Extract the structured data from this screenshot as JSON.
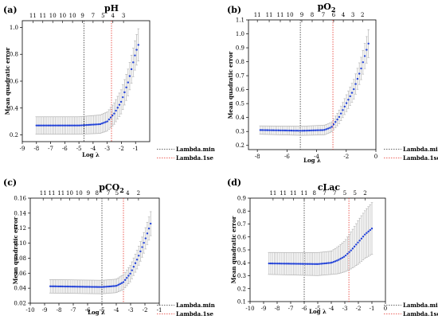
{
  "legend": {
    "min_label": "Lambda.min",
    "se_label": "Lambda.1se",
    "min_color": "#333333",
    "se_color": "#e8342b"
  },
  "colors": {
    "points": "#1f3fd6",
    "errorbars": "#b5b5b5"
  },
  "chart_data": [
    {
      "type": "scatter",
      "panel": "(a)",
      "title": "pH",
      "title_sub": "",
      "title_suffix": "",
      "xlabel": "Log λ",
      "ylabel": "Mean quadratic error",
      "xlim": [
        -9,
        0
      ],
      "ylim": [
        0.15,
        1.05
      ],
      "xticks": [
        -9,
        -8,
        -7,
        -6,
        -5,
        -4,
        -3,
        -2,
        -1
      ],
      "yticks": [
        0.2,
        0.4,
        0.6,
        0.8,
        1.0
      ],
      "ytick_labels": [
        "0.2",
        "0.4",
        "0.6",
        "0.8",
        "1.0"
      ],
      "top_axis": [
        {
          "x": -8.25,
          "label": "11"
        },
        {
          "x": -7.55,
          "label": "11"
        },
        {
          "x": -6.85,
          "label": "10"
        },
        {
          "x": -6.15,
          "label": "10"
        },
        {
          "x": -5.45,
          "label": "10"
        },
        {
          "x": -4.75,
          "label": "9"
        },
        {
          "x": -4.0,
          "label": "7"
        },
        {
          "x": -3.3,
          "label": "5"
        },
        {
          "x": -2.6,
          "label": "4"
        },
        {
          "x": -1.85,
          "label": "3"
        }
      ],
      "lambda_min": -4.65,
      "lambda_1se": -2.7,
      "x_start": -8.0,
      "x_end": -0.8,
      "n_points": 60,
      "curve": [
        [
          -8.0,
          0.27
        ],
        [
          -5.0,
          0.27
        ],
        [
          -3.5,
          0.28
        ],
        [
          -3.0,
          0.3
        ],
        [
          -2.5,
          0.36
        ],
        [
          -2.0,
          0.45
        ],
        [
          -1.5,
          0.6
        ],
        [
          -1.0,
          0.81
        ],
        [
          -0.8,
          0.87
        ]
      ],
      "err": [
        [
          -8.0,
          0.065
        ],
        [
          -5.0,
          0.065
        ],
        [
          -3.0,
          0.07
        ],
        [
          -2.0,
          0.09
        ],
        [
          -1.0,
          0.11
        ],
        [
          -0.8,
          0.12
        ]
      ]
    },
    {
      "type": "scatter",
      "panel": "(b)",
      "title": "pO",
      "title_sub": "2",
      "title_suffix": "",
      "xlabel": "Log λ",
      "ylabel": "Mean quadratic error",
      "xlim": [
        -8.6,
        0
      ],
      "ylim": [
        0.17,
        1.1
      ],
      "xticks": [
        -8,
        -6,
        -4,
        -2,
        0
      ],
      "yticks": [
        0.2,
        0.3,
        0.4,
        0.5,
        0.6,
        0.7,
        0.8,
        0.9,
        1.0,
        1.1
      ],
      "ytick_labels": [
        "0.2",
        "0.3",
        "0.4",
        "0.5",
        "0.6",
        "0.7",
        "0.8",
        "0.9",
        "1.0",
        "1.1"
      ],
      "top_axis": [
        {
          "x": -8.0,
          "label": "11"
        },
        {
          "x": -7.2,
          "label": "11"
        },
        {
          "x": -6.45,
          "label": "11"
        },
        {
          "x": -5.8,
          "label": "10"
        },
        {
          "x": -5.0,
          "label": "9"
        },
        {
          "x": -4.3,
          "label": "8"
        },
        {
          "x": -3.55,
          "label": "7"
        },
        {
          "x": -2.85,
          "label": "6"
        },
        {
          "x": -2.2,
          "label": "4"
        },
        {
          "x": -1.55,
          "label": "3"
        },
        {
          "x": -0.9,
          "label": "2"
        }
      ],
      "lambda_min": -5.1,
      "lambda_1se": -2.9,
      "x_start": -7.8,
      "x_end": -0.5,
      "n_points": 60,
      "curve": [
        [
          -7.8,
          0.31
        ],
        [
          -5.0,
          0.305
        ],
        [
          -3.5,
          0.31
        ],
        [
          -3.0,
          0.33
        ],
        [
          -2.5,
          0.4
        ],
        [
          -2.0,
          0.5
        ],
        [
          -1.5,
          0.6
        ],
        [
          -1.0,
          0.75
        ],
        [
          -0.5,
          0.93
        ]
      ],
      "err": [
        [
          -7.8,
          0.03
        ],
        [
          -3.0,
          0.035
        ],
        [
          -2.0,
          0.06
        ],
        [
          -1.0,
          0.08
        ],
        [
          -0.5,
          0.1
        ]
      ]
    },
    {
      "type": "scatter",
      "panel": "(c)",
      "title": "pCO",
      "title_sub": "2",
      "title_suffix": "",
      "xlabel": "Log λ",
      "ylabel": "Mean quadratic error",
      "xlim": [
        -10,
        -1
      ],
      "ylim": [
        0.02,
        0.16
      ],
      "xticks": [
        -10,
        -9,
        -8,
        -7,
        -6,
        -5,
        -4,
        -3,
        -2,
        -1
      ],
      "yticks": [
        0.02,
        0.04,
        0.06,
        0.08,
        0.1,
        0.12,
        0.14,
        0.16
      ],
      "ytick_labels": [
        "0.02",
        "0.04",
        "0.06",
        "0.08",
        "0.10",
        "0.12",
        "0.14",
        "0.16"
      ],
      "top_axis": [
        {
          "x": -9.1,
          "label": "11"
        },
        {
          "x": -8.5,
          "label": "11"
        },
        {
          "x": -7.85,
          "label": "11"
        },
        {
          "x": -7.25,
          "label": "10"
        },
        {
          "x": -6.6,
          "label": "10"
        },
        {
          "x": -5.95,
          "label": "9"
        },
        {
          "x": -5.35,
          "label": "8"
        },
        {
          "x": -4.55,
          "label": "7"
        },
        {
          "x": -3.95,
          "label": "5"
        },
        {
          "x": -3.2,
          "label": "4"
        },
        {
          "x": -2.45,
          "label": "2"
        }
      ],
      "lambda_min": -5.0,
      "lambda_1se": -3.5,
      "x_start": -8.6,
      "x_end": -1.6,
      "n_points": 60,
      "curve": [
        [
          -8.6,
          0.0425
        ],
        [
          -5.0,
          0.0415
        ],
        [
          -4.0,
          0.043
        ],
        [
          -3.5,
          0.048
        ],
        [
          -3.0,
          0.06
        ],
        [
          -2.5,
          0.08
        ],
        [
          -2.0,
          0.104
        ],
        [
          -1.6,
          0.126
        ]
      ],
      "err": [
        [
          -8.6,
          0.009
        ],
        [
          -4.0,
          0.009
        ],
        [
          -3.0,
          0.011
        ],
        [
          -2.0,
          0.014
        ],
        [
          -1.6,
          0.016
        ]
      ]
    },
    {
      "type": "scatter",
      "panel": "(d)",
      "title": "cLac",
      "title_sub": "",
      "title_suffix": "",
      "xlabel": "Log λ",
      "ylabel": "Mean quadratic error",
      "xlim": [
        -10,
        0
      ],
      "ylim": [
        0.1,
        0.9
      ],
      "xticks": [
        -10,
        -9,
        -8,
        -7,
        -6,
        -5,
        -4,
        -3,
        -2,
        -1,
        0
      ],
      "yticks": [
        0.1,
        0.2,
        0.3,
        0.4,
        0.5,
        0.6,
        0.7,
        0.8,
        0.9
      ],
      "ytick_labels": [
        "0.1",
        "0.2",
        "0.3",
        "0.4",
        "0.5",
        "0.6",
        "0.7",
        "0.8",
        "0.9"
      ],
      "top_axis": [
        {
          "x": -8.3,
          "label": "11"
        },
        {
          "x": -7.55,
          "label": "11"
        },
        {
          "x": -6.8,
          "label": "11"
        },
        {
          "x": -6.0,
          "label": "11"
        },
        {
          "x": -5.25,
          "label": "8"
        },
        {
          "x": -4.5,
          "label": "7"
        },
        {
          "x": -3.75,
          "label": "7"
        },
        {
          "x": -3.0,
          "label": "5"
        },
        {
          "x": -2.25,
          "label": "5"
        },
        {
          "x": -1.5,
          "label": "2"
        }
      ],
      "lambda_min": -6.0,
      "lambda_1se": -2.7,
      "x_start": -8.6,
      "x_end": -1.0,
      "n_points": 60,
      "curve": [
        [
          -8.6,
          0.395
        ],
        [
          -5.0,
          0.39
        ],
        [
          -4.0,
          0.4
        ],
        [
          -3.5,
          0.42
        ],
        [
          -3.0,
          0.45
        ],
        [
          -2.5,
          0.5
        ],
        [
          -2.0,
          0.56
        ],
        [
          -1.5,
          0.62
        ],
        [
          -1.0,
          0.665
        ]
      ],
      "err": [
        [
          -8.6,
          0.085
        ],
        [
          -4.0,
          0.09
        ],
        [
          -3.0,
          0.12
        ],
        [
          -2.0,
          0.17
        ],
        [
          -1.0,
          0.2
        ]
      ]
    }
  ]
}
